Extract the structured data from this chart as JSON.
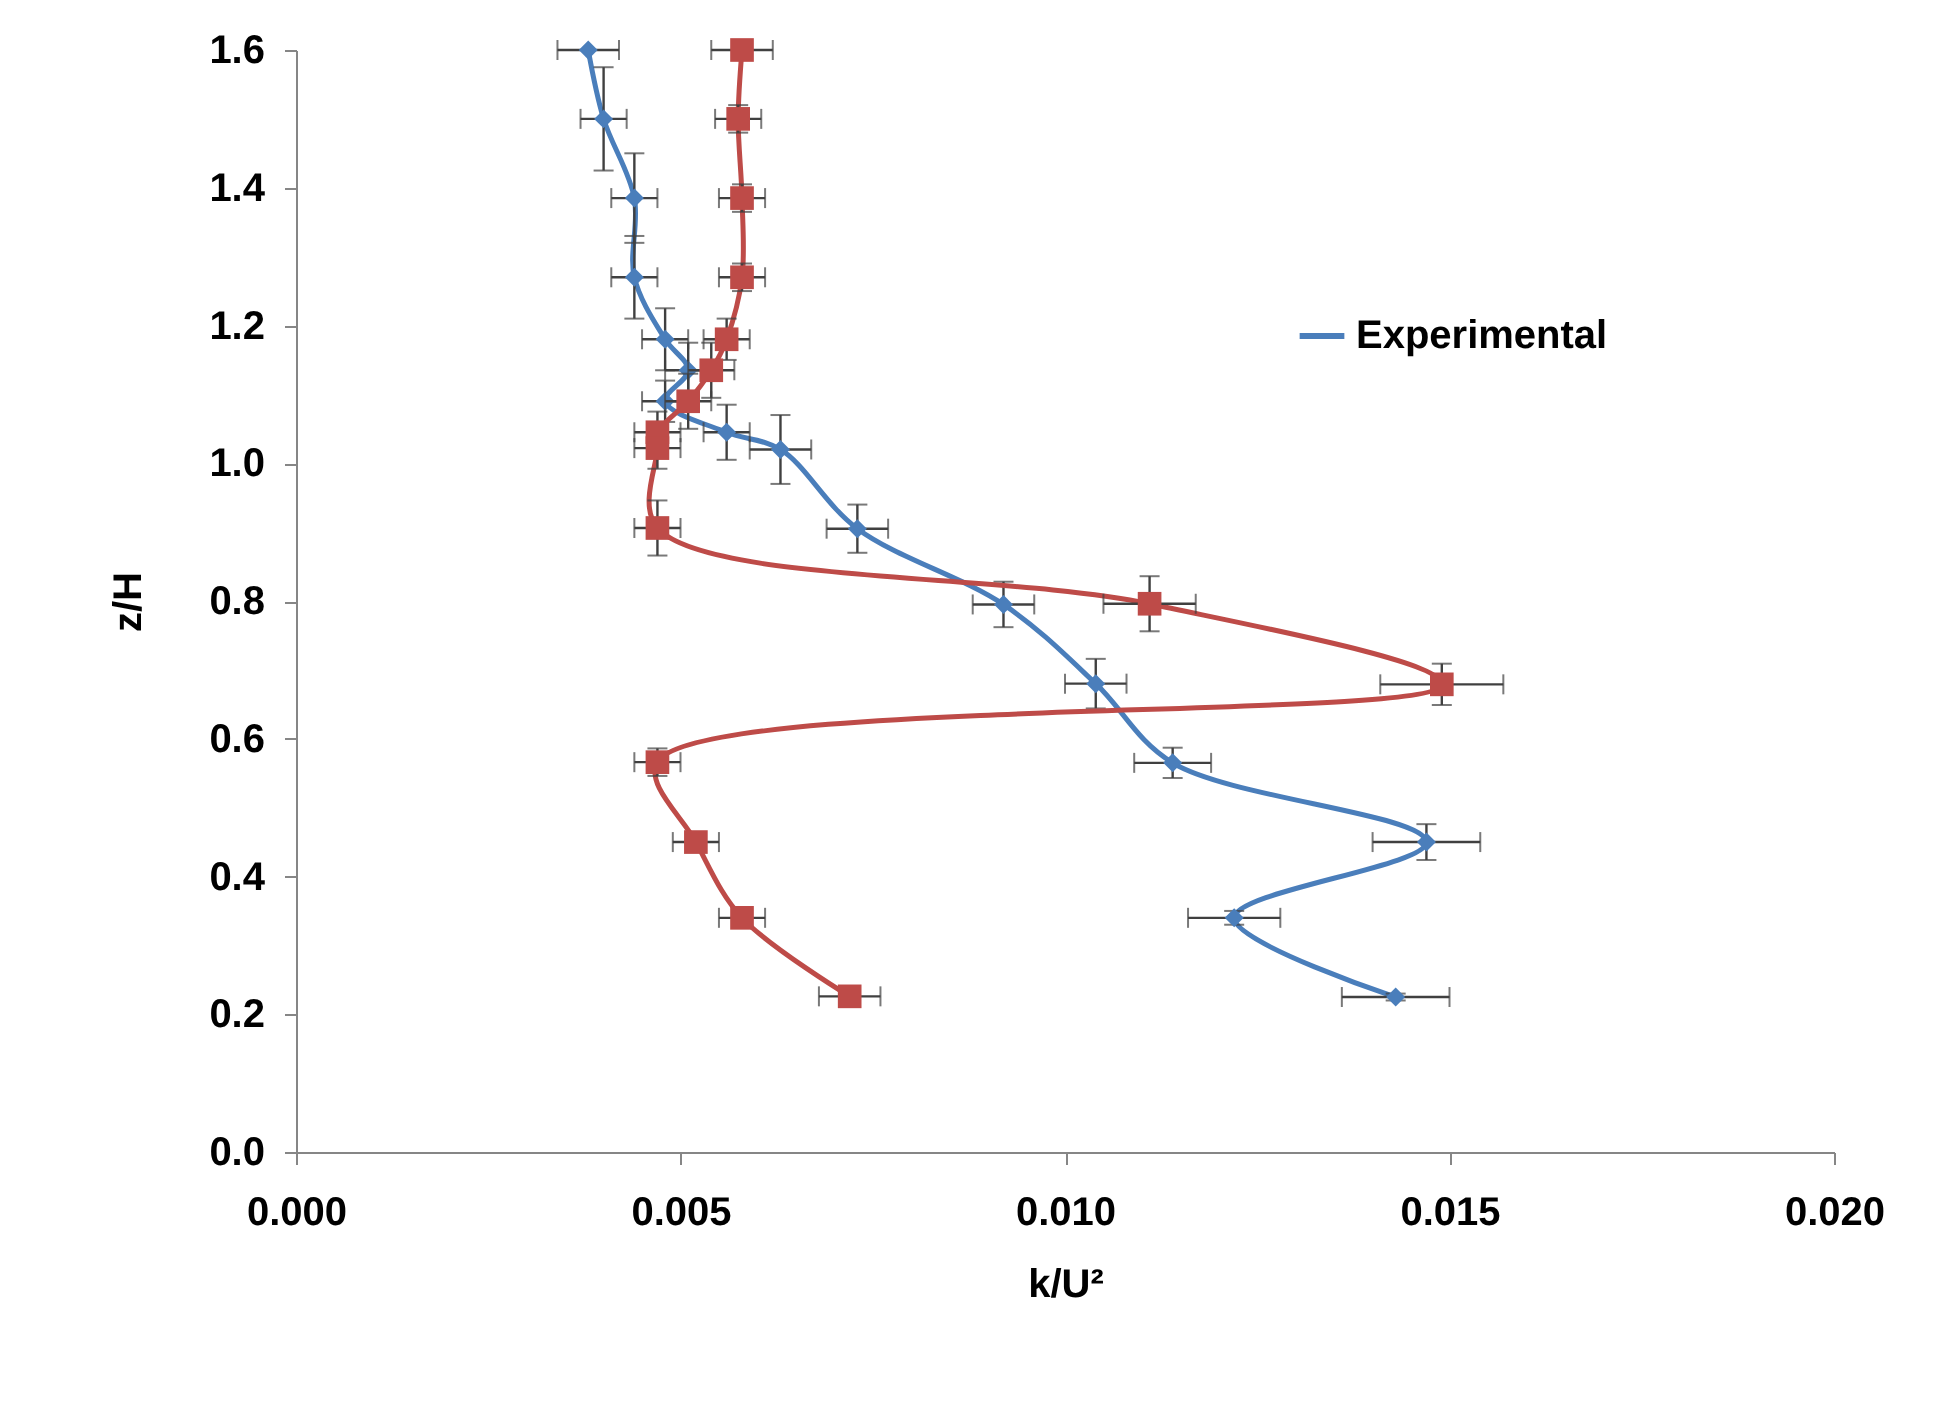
{
  "chart_data": {
    "type": "line",
    "xlabel": "k/U²",
    "ylabel": "z/H",
    "xlim": [
      0,
      0.02
    ],
    "ylim": [
      0,
      1.6
    ],
    "xticks": [
      {
        "value": 0,
        "label": "0.000"
      },
      {
        "value": 0.005,
        "label": "0.005"
      },
      {
        "value": 0.01,
        "label": "0.010"
      },
      {
        "value": 0.015,
        "label": "0.015"
      },
      {
        "value": 0.02,
        "label": "0.020"
      }
    ],
    "yticks": [
      {
        "value": 0,
        "label": "0.0"
      },
      {
        "value": 0.2,
        "label": "0.2"
      },
      {
        "value": 0.4,
        "label": "0.4"
      },
      {
        "value": 0.6,
        "label": "0.6"
      },
      {
        "value": 0.8,
        "label": "0.8"
      },
      {
        "value": 1,
        "label": "1.0"
      },
      {
        "value": 1.2,
        "label": "1.2"
      },
      {
        "value": 1.4,
        "label": "1.4"
      },
      {
        "value": 1.6,
        "label": "1.6"
      }
    ],
    "legend": "right",
    "grid": false,
    "series": [
      {
        "name": "Experimental",
        "color": "#4a7ebb",
        "marker": "diamond",
        "x": [
          0.0038,
          0.004,
          0.0044,
          0.0044,
          0.0048,
          0.0051,
          0.0048,
          0.0056,
          0.0063,
          0.0073,
          0.0092,
          0.0104,
          0.0114,
          0.0147,
          0.0122,
          0.0143
        ],
        "values": [
          1.6,
          1.5,
          1.385,
          1.27,
          1.18,
          1.135,
          1.09,
          1.045,
          1.02,
          0.905,
          0.795,
          0.68,
          0.565,
          0.45,
          0.34,
          0.225
        ],
        "errors": [
          null,
          0.075,
          0.065,
          0.06,
          0.045,
          0.04,
          0.03,
          0.04,
          0.05,
          0.035,
          0.033,
          0.036,
          0.022,
          0.026,
          0.01,
          0.005
        ],
        "xerrors": [
          0.0004,
          0.0003,
          0.0003,
          0.0003,
          0.0003,
          0.0003,
          0.0003,
          0.0003,
          0.0004,
          0.0004,
          0.0004,
          0.0004,
          0.0005,
          0.0007,
          0.0006,
          0.0007
        ]
      },
      {
        "color": "#be4b48",
        "marker": "square",
        "x": [
          0.0058,
          0.00575,
          0.0058,
          0.0058,
          0.0056,
          0.0054,
          0.0051,
          0.0047,
          0.0047,
          0.0047,
          0.0111,
          0.0149,
          0.0047,
          0.0052,
          0.0058,
          0.0072
        ],
        "values": [
          1.6,
          1.5,
          1.385,
          1.27,
          1.18,
          1.135,
          1.09,
          1.045,
          1.022,
          0.906,
          0.796,
          0.679,
          0.566,
          0.45,
          0.34,
          0.226
        ],
        "errors": [
          null,
          0.02,
          0.02,
          0.02,
          0.03,
          0.04,
          0.04,
          0.03,
          0.03,
          0.04,
          0.04,
          0.03,
          0.02,
          null,
          null,
          null
        ],
        "xerrors": [
          0.0004,
          0.0003,
          0.0003,
          0.0003,
          0.0003,
          0.0003,
          0.0003,
          0.0003,
          0.0003,
          0.0003,
          0.0006,
          0.0008,
          0.0003,
          0.0003,
          0.0003,
          0.0004
        ]
      }
    ]
  }
}
